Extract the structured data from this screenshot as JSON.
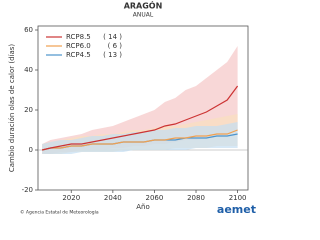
{
  "chart_data": {
    "type": "line",
    "title": "ARAGÓN",
    "subtitle": "ANUAL",
    "y_label": "Cambio duración olas de calor (días)",
    "x_label": "Año",
    "x": [
      2006,
      2010,
      2015,
      2020,
      2025,
      2030,
      2035,
      2040,
      2045,
      2050,
      2055,
      2060,
      2065,
      2070,
      2075,
      2080,
      2085,
      2090,
      2095,
      2100
    ],
    "xlim": [
      2004,
      2105
    ],
    "xticks": [
      2020,
      2040,
      2060,
      2080,
      2100
    ],
    "ylim": [
      -20,
      62
    ],
    "yticks": [
      -20,
      0,
      20,
      40,
      60
    ],
    "series": [
      {
        "name": "RCP8.5",
        "count": "( 14 )",
        "color": "#cc3333",
        "band_color": "#f5c6c6",
        "values": [
          0,
          1,
          2,
          3,
          3,
          4,
          5,
          6,
          7,
          8,
          9,
          10,
          12,
          13,
          15,
          17,
          19,
          22,
          25,
          32
        ],
        "band": {
          "lower": [
            -2,
            -2,
            -1,
            -1,
            0,
            0,
            0,
            1,
            1,
            2,
            2,
            3,
            3,
            4,
            5,
            5,
            6,
            7,
            8,
            10
          ],
          "upper": [
            3,
            5,
            6,
            7,
            8,
            10,
            11,
            12,
            14,
            16,
            18,
            20,
            24,
            26,
            30,
            32,
            36,
            40,
            44,
            52
          ]
        }
      },
      {
        "name": "RCP6.0",
        "count": "( 6 )",
        "color": "#f0a050",
        "band_color": "#f9dfbf",
        "values": [
          0,
          1,
          1,
          2,
          2,
          3,
          3,
          3,
          4,
          4,
          4,
          5,
          5,
          6,
          6,
          7,
          7,
          8,
          8,
          10
        ],
        "band": {
          "lower": [
            -2,
            -2,
            -2,
            -1,
            -1,
            -1,
            -1,
            -1,
            0,
            0,
            0,
            0,
            0,
            1,
            1,
            1,
            1,
            2,
            2,
            2
          ],
          "upper": [
            3,
            4,
            5,
            6,
            7,
            7,
            8,
            8,
            9,
            10,
            10,
            11,
            12,
            12,
            13,
            14,
            15,
            16,
            17,
            18
          ]
        }
      },
      {
        "name": "RCP4.5",
        "count": "( 13 )",
        "color": "#4d94cc",
        "band_color": "#c4def2",
        "values": [
          0,
          1,
          1,
          2,
          2,
          3,
          3,
          3,
          4,
          4,
          4,
          5,
          5,
          5,
          6,
          6,
          6,
          7,
          7,
          8
        ],
        "band": {
          "lower": [
            -2,
            -2,
            -2,
            -2,
            -1,
            -1,
            -1,
            -1,
            -1,
            0,
            0,
            0,
            0,
            0,
            0,
            1,
            1,
            1,
            1,
            1
          ],
          "upper": [
            3,
            4,
            5,
            5,
            6,
            7,
            7,
            8,
            8,
            9,
            9,
            10,
            10,
            11,
            11,
            12,
            12,
            12,
            13,
            14
          ]
        }
      }
    ],
    "footer": "© Agencia Estatal de Meteorología",
    "logo": "aemet"
  }
}
